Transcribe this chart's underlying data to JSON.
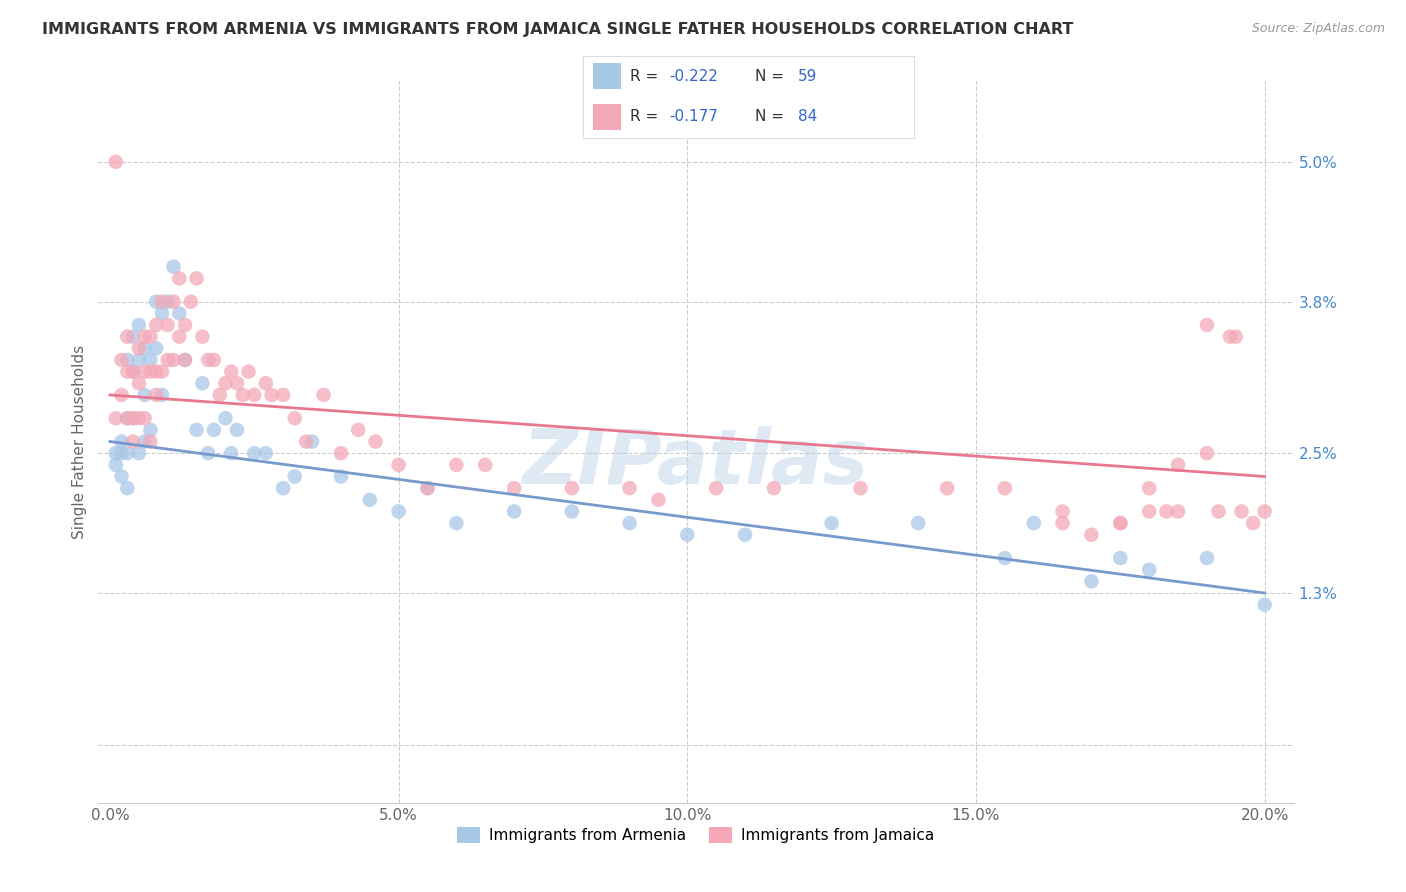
{
  "title": "IMMIGRANTS FROM ARMENIA VS IMMIGRANTS FROM JAMAICA SINGLE FATHER HOUSEHOLDS CORRELATION CHART",
  "source": "Source: ZipAtlas.com",
  "xlabel_ticks": [
    "0.0%",
    "5.0%",
    "10.0%",
    "15.0%",
    "20.0%"
  ],
  "xlabel_tick_vals": [
    0.0,
    0.05,
    0.1,
    0.15,
    0.2
  ],
  "right_ytick_labels": [
    "5.0%",
    "3.8%",
    "2.5%",
    "1.3%"
  ],
  "right_ytick_vals": [
    0.05,
    0.038,
    0.025,
    0.013
  ],
  "ylabel_tick_vals": [
    0.0,
    0.013,
    0.025,
    0.038,
    0.05
  ],
  "xlim": [
    -0.002,
    0.205
  ],
  "ylim": [
    -0.005,
    0.057
  ],
  "armenia_color": "#a8c8e8",
  "jamaica_color": "#f4a8b8",
  "armenia_line_color": "#7799cc",
  "jamaica_line_color": "#e87890",
  "armenia_R": -0.222,
  "armenia_N": 59,
  "jamaica_R": -0.177,
  "jamaica_N": 84,
  "legend_label_armenia": "Immigrants from Armenia",
  "legend_label_jamaica": "Immigrants from Jamaica",
  "ylabel": "Single Father Households",
  "watermark": "ZIPatlas",
  "armenia_x": [
    0.001,
    0.001,
    0.002,
    0.002,
    0.002,
    0.003,
    0.003,
    0.003,
    0.003,
    0.004,
    0.004,
    0.004,
    0.005,
    0.005,
    0.005,
    0.006,
    0.006,
    0.006,
    0.007,
    0.007,
    0.008,
    0.008,
    0.009,
    0.009,
    0.01,
    0.011,
    0.012,
    0.013,
    0.015,
    0.016,
    0.017,
    0.018,
    0.02,
    0.021,
    0.022,
    0.025,
    0.027,
    0.03,
    0.032,
    0.035,
    0.04,
    0.045,
    0.05,
    0.055,
    0.06,
    0.07,
    0.08,
    0.09,
    0.1,
    0.11,
    0.125,
    0.14,
    0.155,
    0.16,
    0.17,
    0.175,
    0.18,
    0.19,
    0.2
  ],
  "armenia_y": [
    0.025,
    0.024,
    0.026,
    0.025,
    0.023,
    0.033,
    0.028,
    0.025,
    0.022,
    0.035,
    0.032,
    0.028,
    0.036,
    0.033,
    0.025,
    0.034,
    0.03,
    0.026,
    0.033,
    0.027,
    0.038,
    0.034,
    0.037,
    0.03,
    0.038,
    0.041,
    0.037,
    0.033,
    0.027,
    0.031,
    0.025,
    0.027,
    0.028,
    0.025,
    0.027,
    0.025,
    0.025,
    0.022,
    0.023,
    0.026,
    0.023,
    0.021,
    0.02,
    0.022,
    0.019,
    0.02,
    0.02,
    0.019,
    0.018,
    0.018,
    0.019,
    0.019,
    0.016,
    0.019,
    0.014,
    0.016,
    0.015,
    0.016,
    0.012
  ],
  "jamaica_x": [
    0.001,
    0.001,
    0.002,
    0.002,
    0.003,
    0.003,
    0.003,
    0.004,
    0.004,
    0.004,
    0.005,
    0.005,
    0.005,
    0.006,
    0.006,
    0.006,
    0.007,
    0.007,
    0.007,
    0.008,
    0.008,
    0.008,
    0.009,
    0.009,
    0.01,
    0.01,
    0.011,
    0.011,
    0.012,
    0.012,
    0.013,
    0.013,
    0.014,
    0.015,
    0.016,
    0.017,
    0.018,
    0.019,
    0.02,
    0.021,
    0.022,
    0.023,
    0.024,
    0.025,
    0.027,
    0.028,
    0.03,
    0.032,
    0.034,
    0.037,
    0.04,
    0.043,
    0.046,
    0.05,
    0.055,
    0.06,
    0.065,
    0.07,
    0.08,
    0.09,
    0.095,
    0.105,
    0.115,
    0.13,
    0.145,
    0.155,
    0.165,
    0.175,
    0.18,
    0.185,
    0.19,
    0.192,
    0.194,
    0.196,
    0.198,
    0.2,
    0.195,
    0.19,
    0.185,
    0.183,
    0.18,
    0.175,
    0.17,
    0.165
  ],
  "jamaica_y": [
    0.05,
    0.028,
    0.033,
    0.03,
    0.035,
    0.032,
    0.028,
    0.032,
    0.028,
    0.026,
    0.034,
    0.031,
    0.028,
    0.035,
    0.032,
    0.028,
    0.035,
    0.032,
    0.026,
    0.036,
    0.032,
    0.03,
    0.038,
    0.032,
    0.036,
    0.033,
    0.038,
    0.033,
    0.04,
    0.035,
    0.036,
    0.033,
    0.038,
    0.04,
    0.035,
    0.033,
    0.033,
    0.03,
    0.031,
    0.032,
    0.031,
    0.03,
    0.032,
    0.03,
    0.031,
    0.03,
    0.03,
    0.028,
    0.026,
    0.03,
    0.025,
    0.027,
    0.026,
    0.024,
    0.022,
    0.024,
    0.024,
    0.022,
    0.022,
    0.022,
    0.021,
    0.022,
    0.022,
    0.022,
    0.022,
    0.022,
    0.02,
    0.019,
    0.02,
    0.024,
    0.036,
    0.02,
    0.035,
    0.02,
    0.019,
    0.02,
    0.035,
    0.025,
    0.02,
    0.02,
    0.022,
    0.019,
    0.018,
    0.019
  ]
}
